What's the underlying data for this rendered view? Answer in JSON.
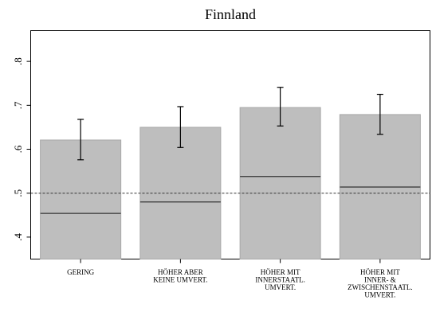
{
  "chart_data": {
    "type": "bar",
    "title": "Finnland",
    "xlabel": "",
    "ylabel": "",
    "categories": [
      [
        "GERING"
      ],
      [
        "HÖHER ABER",
        "KEINE UMVERT."
      ],
      [
        "HÖHER MIT",
        "INNERSTAATL.",
        "UMVERT."
      ],
      [
        "HÖHER MIT",
        "INNER- &",
        "ZWISCHENSTAATL.",
        "UMVERT."
      ]
    ],
    "values": [
      0.621,
      0.65,
      0.695,
      0.679
    ],
    "ci_low": [
      0.576,
      0.604,
      0.653,
      0.634
    ],
    "ci_high": [
      0.668,
      0.697,
      0.741,
      0.725
    ],
    "inner_line": [
      0.454,
      0.48,
      0.538,
      0.514
    ],
    "reference_line": 0.5,
    "ylim": [
      0.35,
      0.87
    ],
    "yticks": [
      0.4,
      0.5,
      0.6,
      0.7,
      0.8
    ],
    "ytick_labels": [
      ".4",
      ".5",
      ".6",
      ".7",
      ".8"
    ],
    "grid": false,
    "bar_color": "#bebebe",
    "bar_edge_color": "#a8a8a8",
    "line_color": "#333333"
  }
}
